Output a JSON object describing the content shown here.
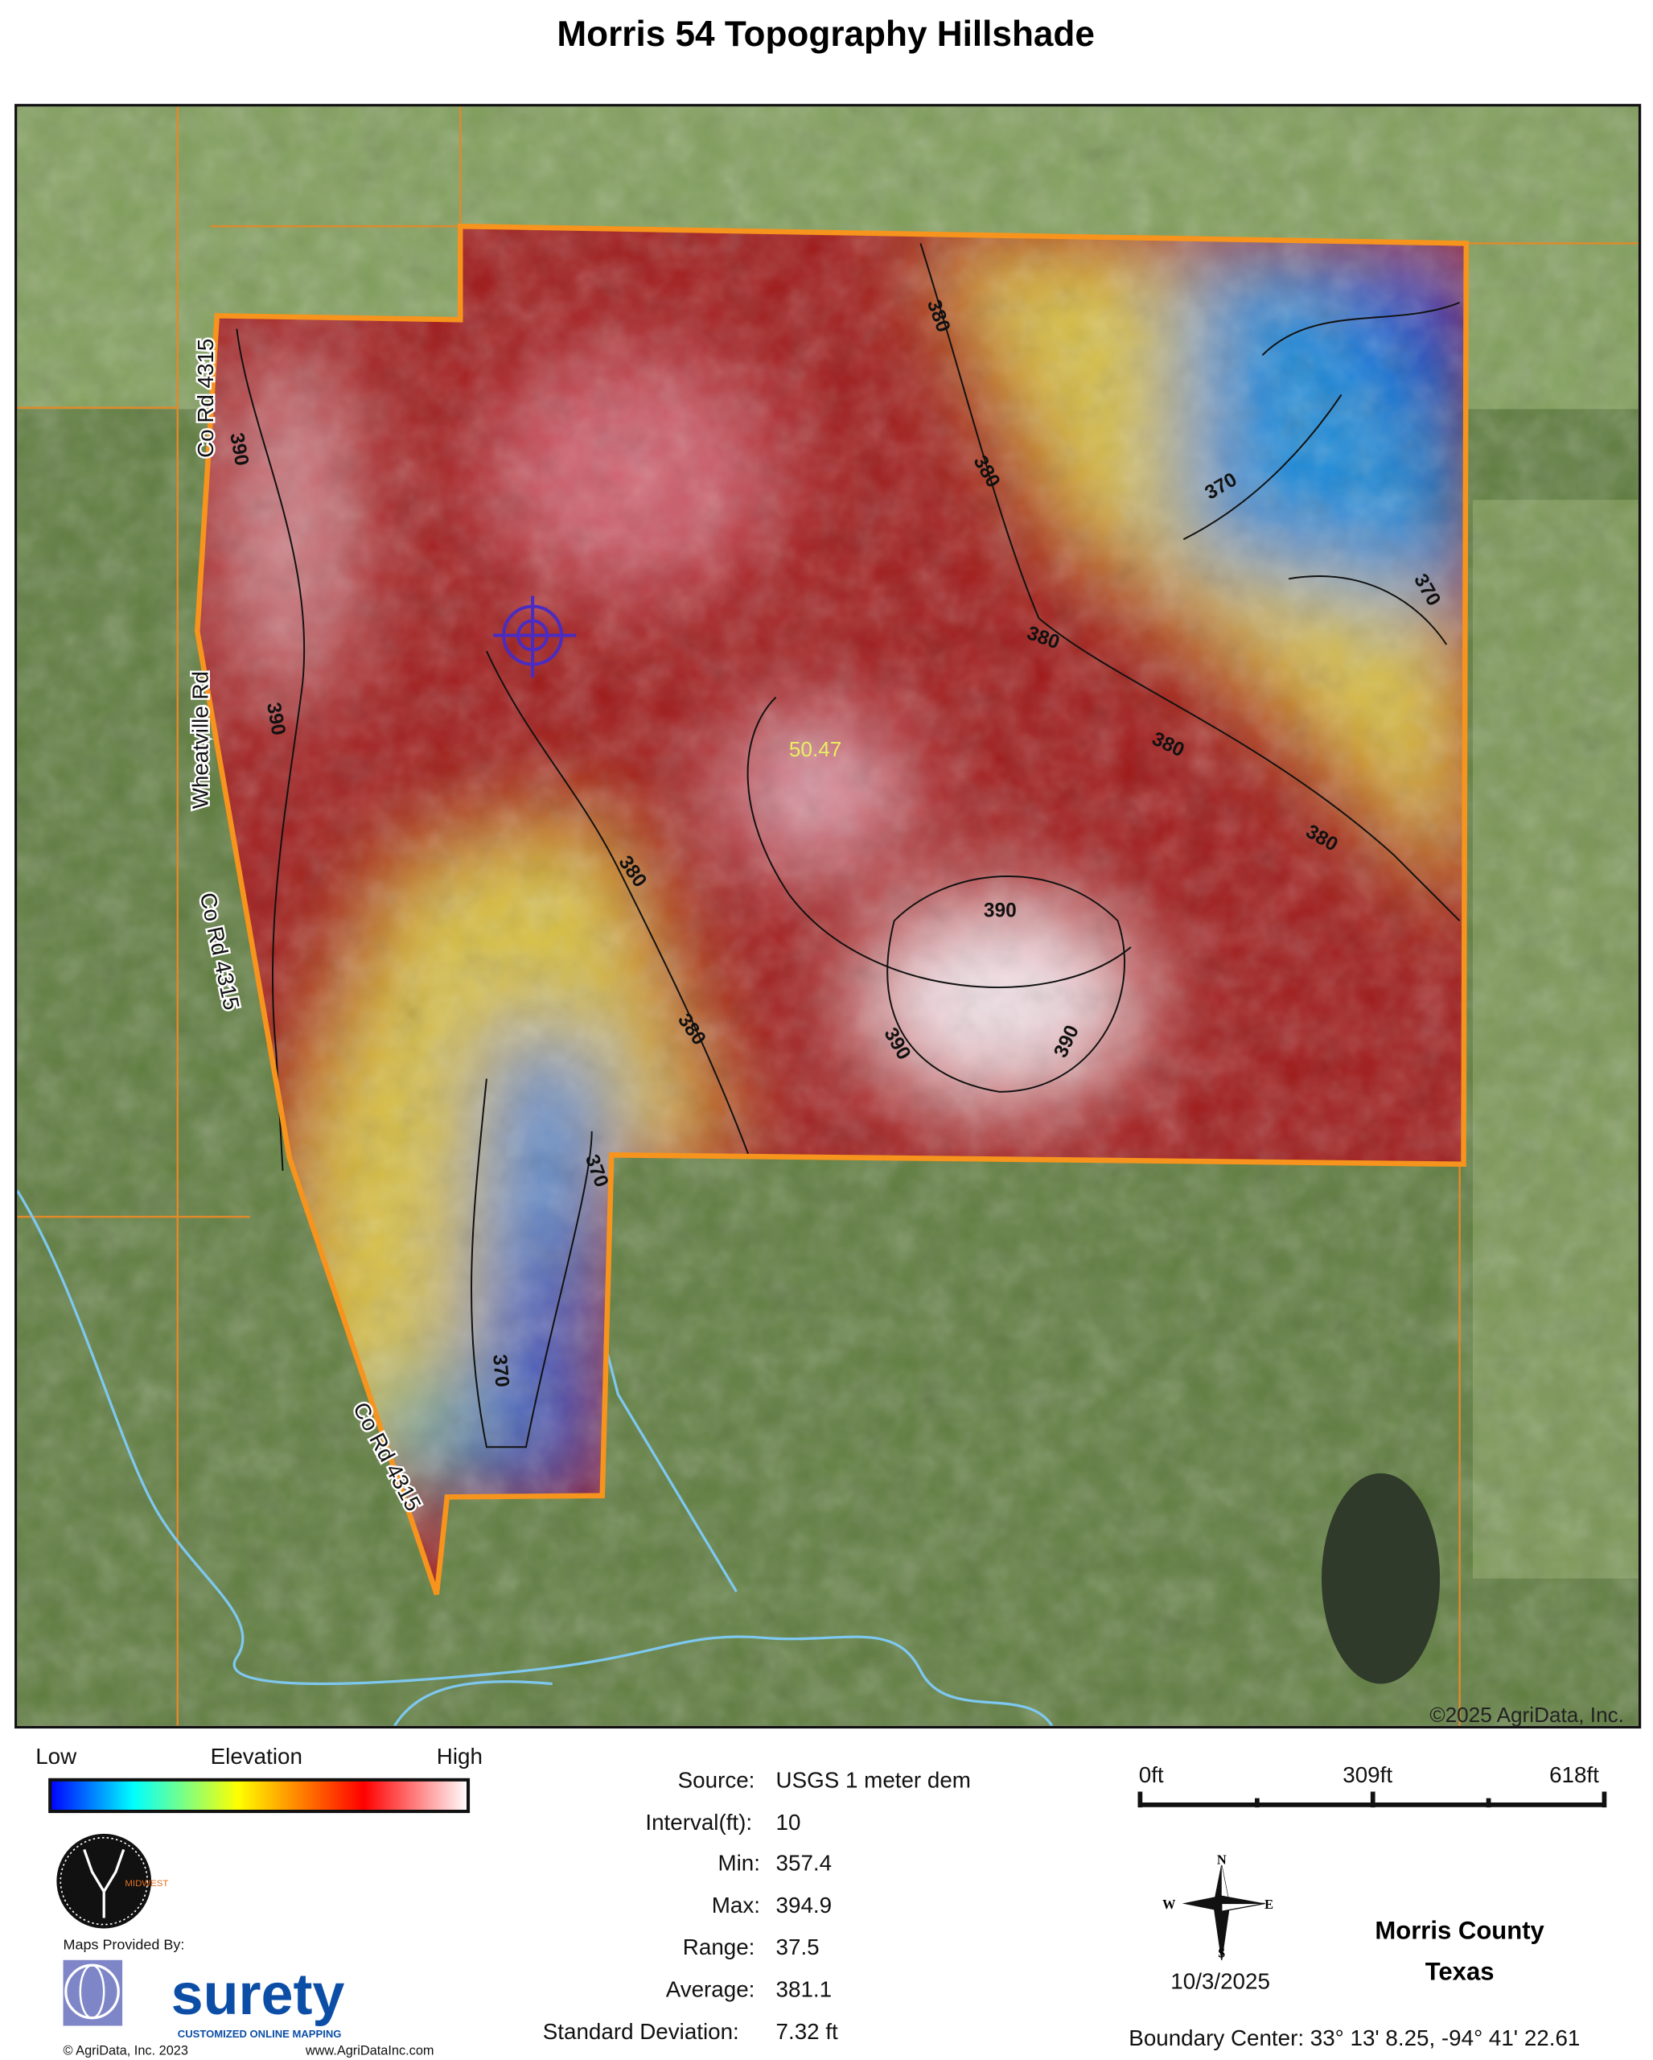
{
  "title": "Morris 54 Topography Hillshade",
  "map": {
    "copyright": "©2025 AgriData, Inc.",
    "acreage_label": "50.47",
    "roads": [
      "Co Rd 4315",
      "Wheatville Rd",
      "Co Rd 4315",
      "Co Rd 4315"
    ],
    "contour_labels": [
      "390",
      "390",
      "380",
      "380",
      "380",
      "380",
      "380",
      "380",
      "380",
      "390",
      "390",
      "390",
      "370",
      "370",
      "370",
      "370"
    ],
    "colors": {
      "boundary": "#f7941d",
      "stream": "#7ec8f0",
      "parcel_line": "#e08a2a",
      "aerial": "#6f8a4a"
    }
  },
  "legend": {
    "low": "Low",
    "title": "Elevation",
    "high": "High",
    "ramp": [
      "#0000ff",
      "#00ffff",
      "#ffff00",
      "#ff8000",
      "#ff0000",
      "#ffffff"
    ]
  },
  "stats": [
    {
      "label": "Source:",
      "value": "USGS 1 meter dem"
    },
    {
      "label": "Interval(ft):",
      "value": "10"
    },
    {
      "label": "Min:",
      "value": "357.4"
    },
    {
      "label": "Max:",
      "value": "394.9"
    },
    {
      "label": "Range:",
      "value": "37.5"
    },
    {
      "label": "Average:",
      "value": "381.1"
    },
    {
      "label": "Standard Deviation:",
      "value": "7.32 ft"
    }
  ],
  "scale_bar": {
    "labels": [
      "0ft",
      "309ft",
      "618ft"
    ]
  },
  "compass": {
    "n": "N",
    "s": "S",
    "e": "E",
    "w": "W"
  },
  "date": "10/3/2025",
  "county": "Morris County",
  "state": "Texas",
  "boundary_center": "Boundary Center: 33° 13' 8.25,  -94° 41' 22.61",
  "branding": {
    "midwest_logo": "MIDWEST LAND GROUP",
    "provided_by": "Maps Provided By:",
    "surety": "surety",
    "surety_tagline": "CUSTOMIZED ONLINE MAPPING",
    "copyright": "© AgriData, Inc. 2023",
    "website": "www.AgriDataInc.com"
  }
}
